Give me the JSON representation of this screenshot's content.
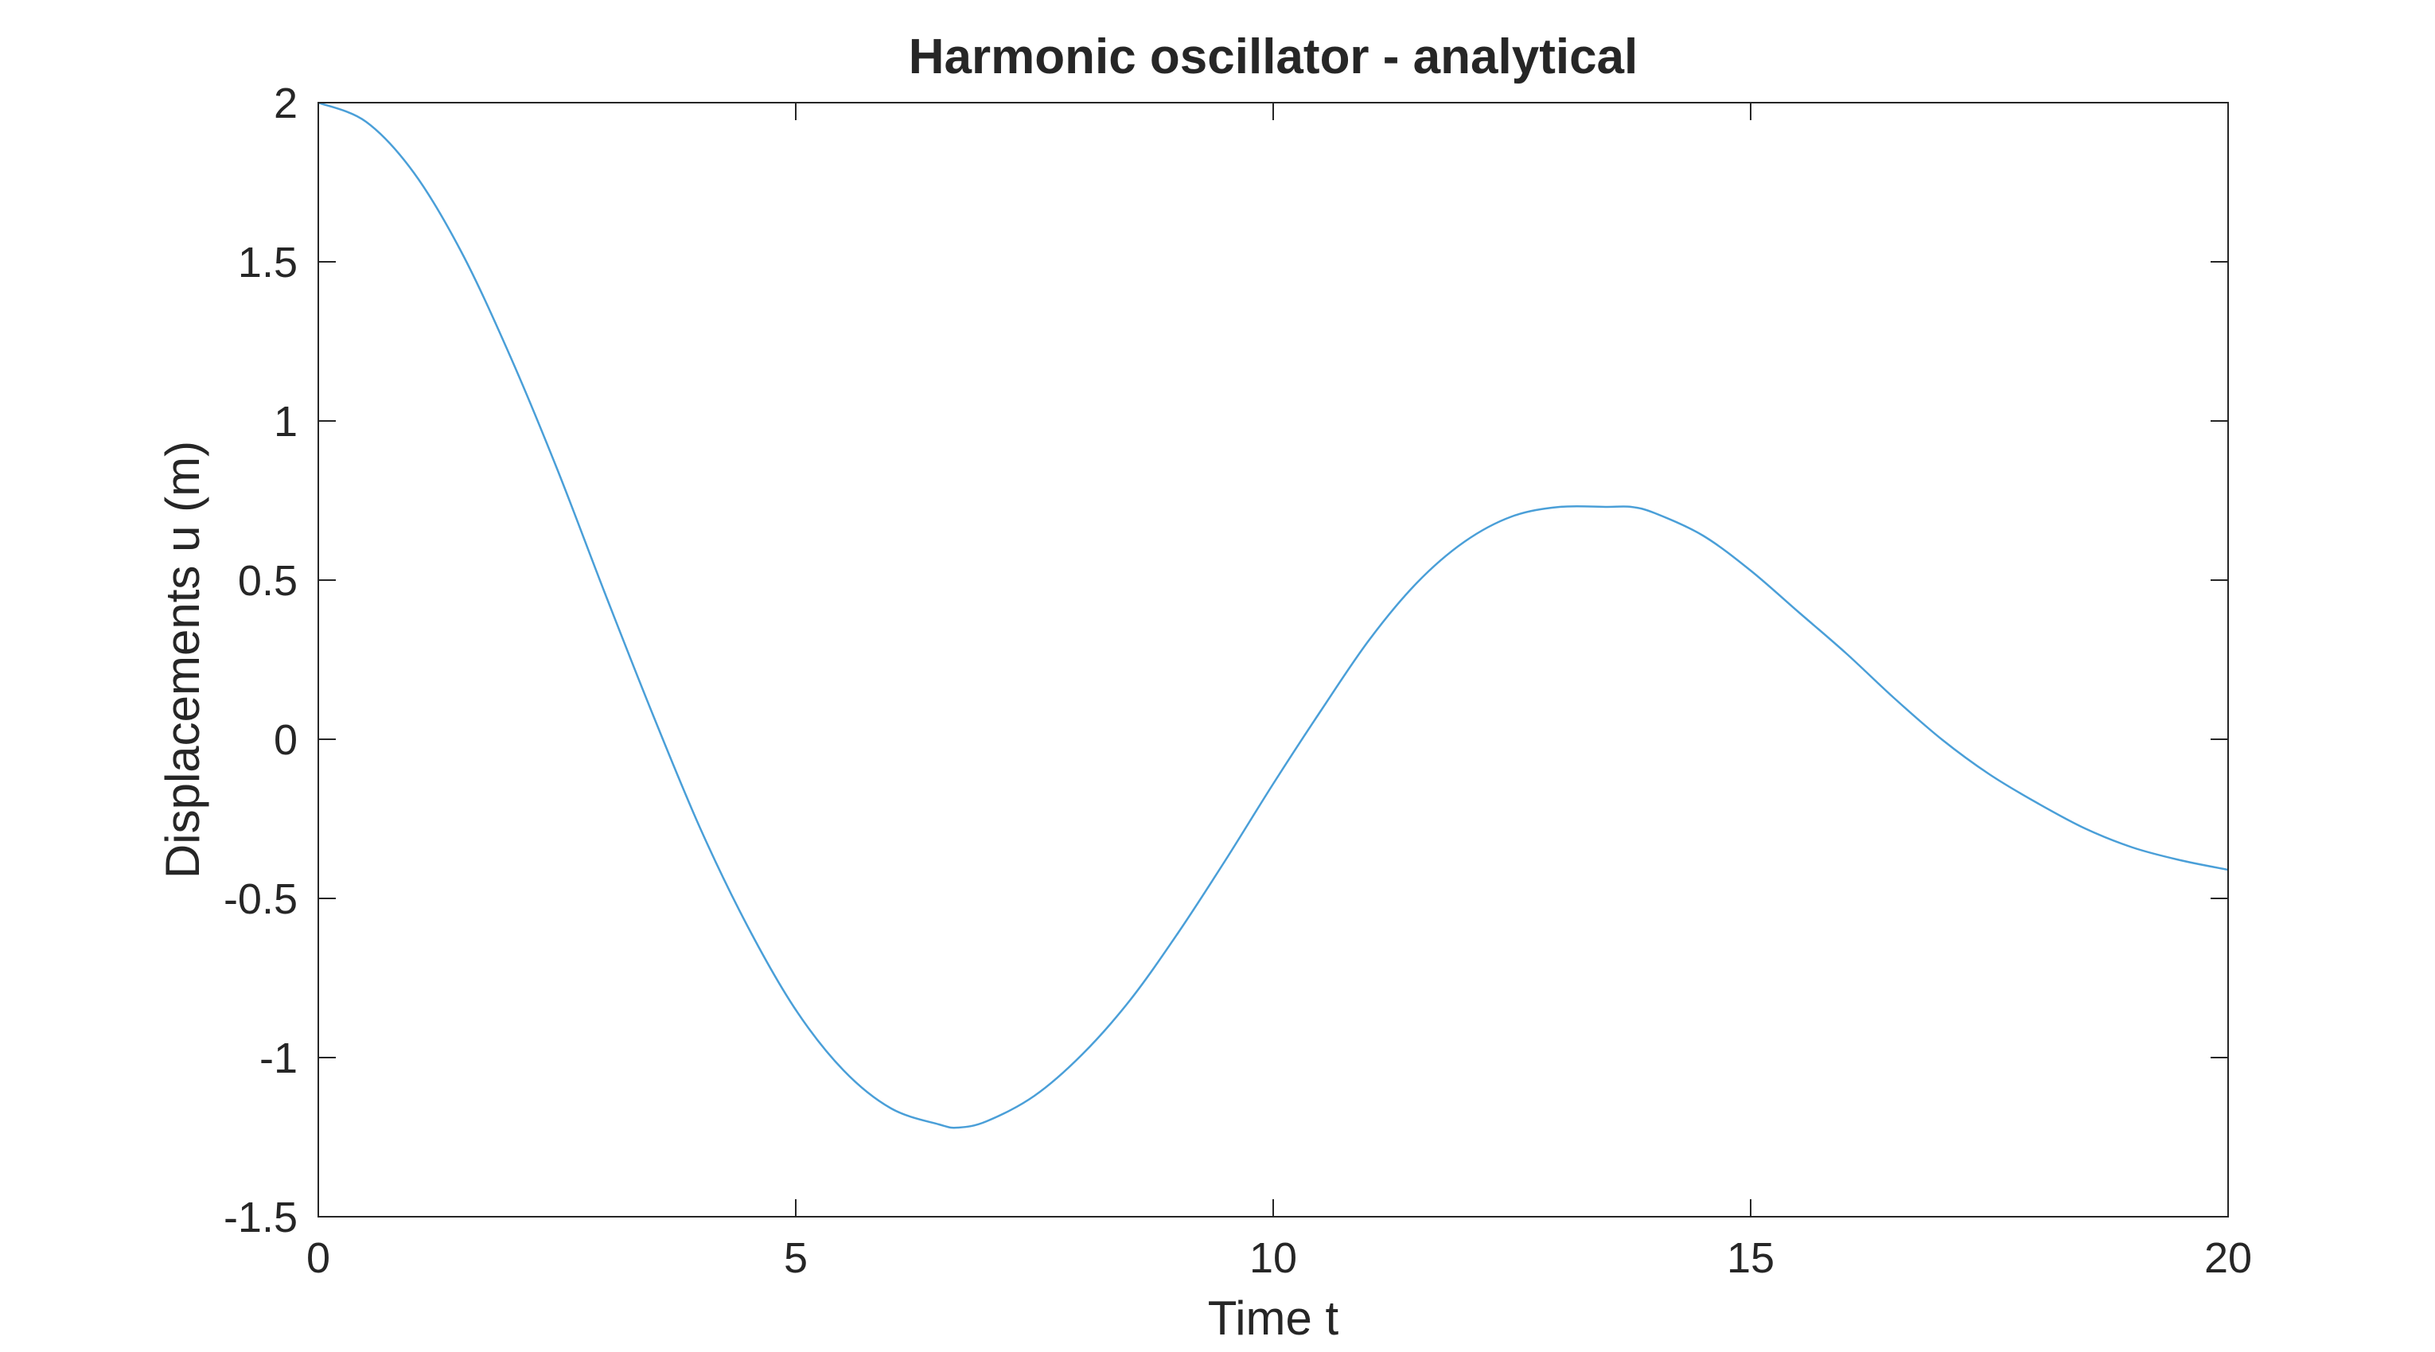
{
  "chart_data": {
    "type": "line",
    "title": "Harmonic oscillator - analytical",
    "xlabel": "Time t",
    "ylabel": "Displacements u (m)",
    "xlim": [
      0,
      20
    ],
    "ylim": [
      -1.5,
      2
    ],
    "xticks": [
      0,
      5,
      10,
      15,
      20
    ],
    "yticks": [
      -1.5,
      -1,
      -0.5,
      0,
      0.5,
      1,
      1.5,
      2
    ],
    "xtick_labels": [
      "0",
      "5",
      "10",
      "15",
      "20"
    ],
    "ytick_labels": [
      "-1.5",
      "-1",
      "-0.5",
      "0",
      "0.5",
      "1",
      "1.5",
      "2"
    ],
    "grid": false,
    "line_color": "#4a9fd8",
    "series": [
      {
        "x": [
          0,
          0.5,
          1,
          1.5,
          2,
          2.5,
          3,
          3.5,
          4,
          4.5,
          5,
          5.5,
          6,
          6.5,
          6.7,
          7,
          7.5,
          8,
          8.5,
          9,
          9.5,
          10,
          10.5,
          11,
          11.5,
          12,
          12.5,
          13,
          13.5,
          13.75,
          14,
          14.5,
          15,
          15.5,
          16,
          16.5,
          17,
          17.5,
          18,
          18.5,
          19,
          19.5,
          20
        ],
        "values": [
          2.0,
          1.94,
          1.78,
          1.53,
          1.21,
          0.85,
          0.46,
          0.08,
          -0.28,
          -0.59,
          -0.85,
          -1.04,
          -1.16,
          -1.21,
          -1.22,
          -1.2,
          -1.12,
          -0.99,
          -0.82,
          -0.61,
          -0.38,
          -0.14,
          0.09,
          0.31,
          0.49,
          0.62,
          0.7,
          0.73,
          0.73,
          0.73,
          0.71,
          0.64,
          0.53,
          0.4,
          0.27,
          0.13,
          0.0,
          -0.11,
          -0.2,
          -0.28,
          -0.34,
          -0.38,
          -0.41
        ]
      }
    ]
  }
}
